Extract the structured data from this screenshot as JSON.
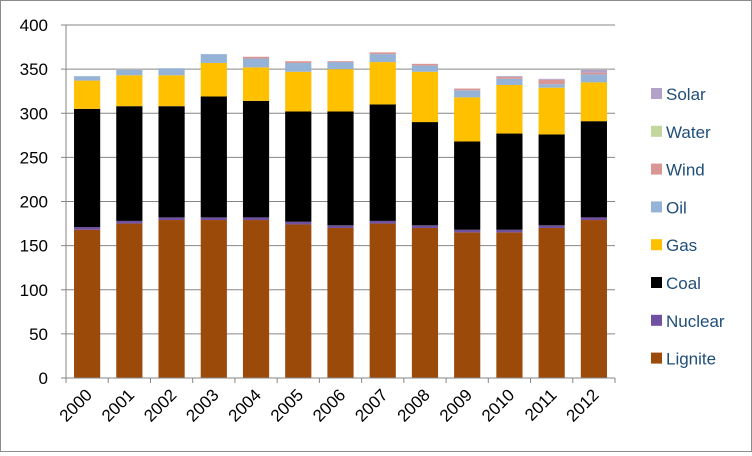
{
  "chart_data": {
    "type": "bar",
    "stacked": true,
    "categories": [
      "2000",
      "2001",
      "2002",
      "2003",
      "2004",
      "2005",
      "2006",
      "2007",
      "2008",
      "2009",
      "2010",
      "2011",
      "2012"
    ],
    "ylim": [
      0,
      400
    ],
    "yticks": [
      0,
      50,
      100,
      150,
      200,
      250,
      300,
      350,
      400
    ],
    "grid": "horizontal",
    "legend_position": "right",
    "series": [
      {
        "name": "Lignite",
        "color": "#9c4a0a",
        "values": [
          168,
          175,
          179,
          179,
          179,
          174,
          170,
          175,
          170,
          165,
          165,
          170,
          179
        ]
      },
      {
        "name": "Nuclear",
        "color": "#7050a0",
        "values": [
          3,
          3,
          3,
          3,
          3,
          3,
          3,
          3,
          3,
          3,
          3,
          3,
          3
        ]
      },
      {
        "name": "Coal",
        "color": "#000000",
        "values": [
          134,
          130,
          126,
          137,
          132,
          125,
          129,
          132,
          117,
          100,
          109,
          103,
          109
        ]
      },
      {
        "name": "Gas",
        "color": "#ffc000",
        "values": [
          32,
          35,
          35,
          38,
          38,
          45,
          48,
          48,
          57,
          50,
          55,
          53,
          44
        ]
      },
      {
        "name": "Oil",
        "color": "#95b3d7",
        "values": [
          5,
          6,
          8,
          10,
          10,
          10,
          8,
          9,
          7,
          8,
          7,
          4,
          9
        ]
      },
      {
        "name": "Wind",
        "color": "#d99694",
        "values": [
          0,
          0,
          0,
          0,
          2,
          2,
          1,
          2,
          2,
          2,
          2,
          5,
          2
        ]
      },
      {
        "name": "Water",
        "color": "#c3d69b",
        "values": [
          0,
          0,
          0,
          0,
          0,
          0,
          0,
          0,
          0,
          0,
          0,
          0,
          0
        ]
      },
      {
        "name": "Solar",
        "color": "#b3a2c7",
        "values": [
          0,
          0,
          0,
          0,
          0,
          0,
          0,
          0,
          0,
          0,
          1,
          1,
          3
        ]
      }
    ]
  }
}
